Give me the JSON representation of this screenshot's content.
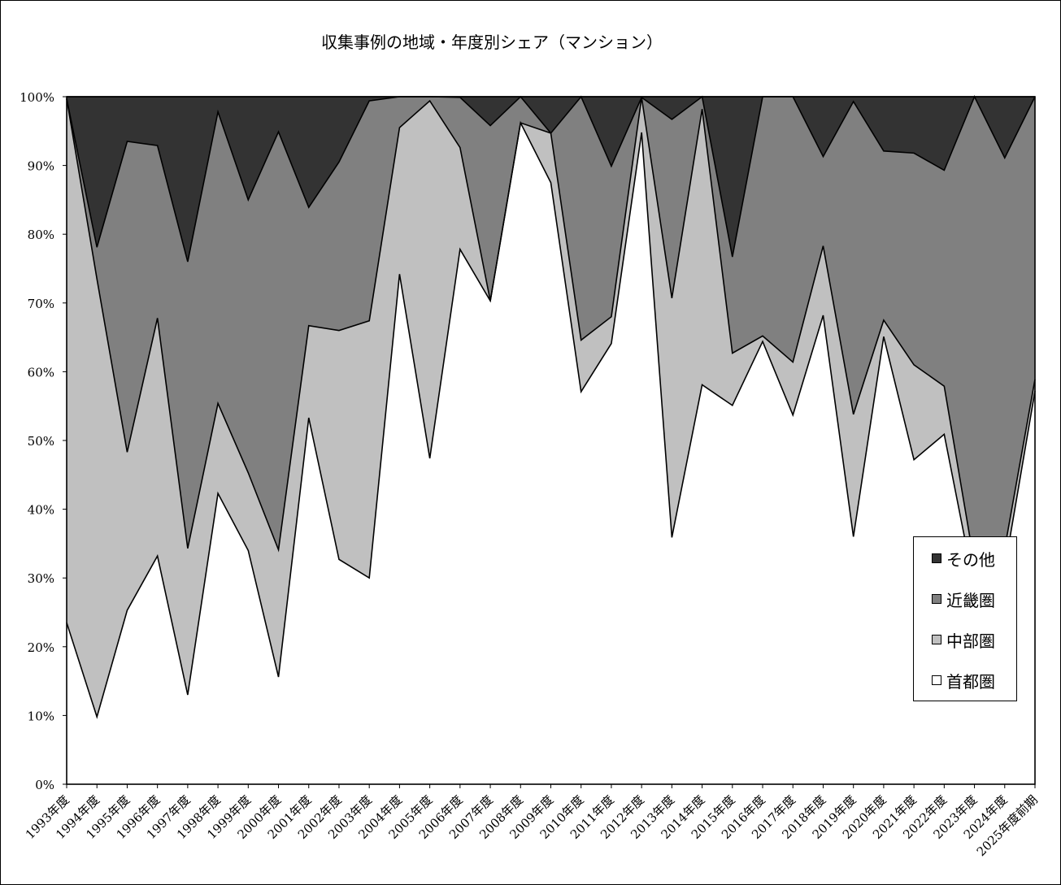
{
  "chart_data": {
    "type": "area",
    "stacked": true,
    "percent": true,
    "title": "収集事例の地域・年度別シェア（マンション）",
    "ylim": [
      0,
      100
    ],
    "yticks": [
      "0%",
      "10%",
      "20%",
      "30%",
      "40%",
      "50%",
      "60%",
      "70%",
      "80%",
      "90%",
      "100%"
    ],
    "legend_position": "right-lower",
    "categories": [
      "1993年度",
      "1994年度",
      "1995年度",
      "1996年度",
      "1997年度",
      "1998年度",
      "1999年度",
      "2000年度",
      "2001年度",
      "2002年度",
      "2003年度",
      "2004年度",
      "2005年度",
      "2006年度",
      "2007年度",
      "2008年度",
      "2009年度",
      "2010年度",
      "2011年度",
      "2012年度",
      "2013年度",
      "2014年度",
      "2015年度",
      "2016年度",
      "2017年度",
      "2018年度",
      "2019年度",
      "2020年度",
      "2021年度",
      "2022年度",
      "2023年度",
      "2024年度",
      "2025年度前期"
    ],
    "series": [
      {
        "name": "首都圏",
        "color": "#ffffff",
        "values": [
          23.5,
          9.8,
          25.3,
          33.2,
          13.0,
          42.3,
          34.0,
          15.6,
          53.3,
          32.7,
          30.0,
          74.2,
          47.4,
          77.8,
          70.3,
          96.2,
          87.5,
          57.1,
          64.1,
          94.8,
          35.9,
          58.1,
          55.1,
          64.4,
          53.7,
          68.2,
          36.0,
          65.1,
          47.2,
          50.9,
          28.6,
          31.4,
          57.2
        ]
      },
      {
        "name": "中部圏",
        "color": "#c0c0c0",
        "values": [
          76.2,
          63.7,
          23.0,
          34.6,
          21.3,
          13.1,
          11.3,
          18.5,
          13.4,
          33.3,
          37.4,
          21.3,
          52.0,
          14.8,
          0.0,
          0.0,
          7.2,
          7.5,
          3.9,
          5.1,
          34.8,
          40.1,
          7.6,
          0.8,
          7.7,
          10.1,
          17.8,
          2.4,
          13.8,
          7.0,
          3.4,
          2.9,
          1.7
        ]
      },
      {
        "name": "近畿圏",
        "color": "#808080",
        "values": [
          0.0,
          4.6,
          45.2,
          25.1,
          41.7,
          42.4,
          39.7,
          60.8,
          17.2,
          24.5,
          32.0,
          4.5,
          0.6,
          7.3,
          25.5,
          3.8,
          0.0,
          35.4,
          21.9,
          0.0,
          26.0,
          1.8,
          14.0,
          34.8,
          38.6,
          13.0,
          45.5,
          24.6,
          30.8,
          31.4,
          68.0,
          56.8,
          41.1
        ]
      },
      {
        "name": "その他",
        "color": "#333333",
        "values": [
          0.3,
          21.9,
          6.5,
          7.1,
          24.0,
          2.2,
          15.0,
          5.1,
          16.1,
          9.5,
          0.6,
          0.0,
          0.0,
          0.1,
          4.2,
          0.0,
          5.3,
          0.0,
          10.1,
          0.1,
          3.3,
          0.0,
          23.3,
          0.0,
          0.0,
          8.7,
          0.7,
          7.9,
          8.2,
          10.7,
          0.0,
          8.9,
          0.0
        ]
      }
    ]
  }
}
